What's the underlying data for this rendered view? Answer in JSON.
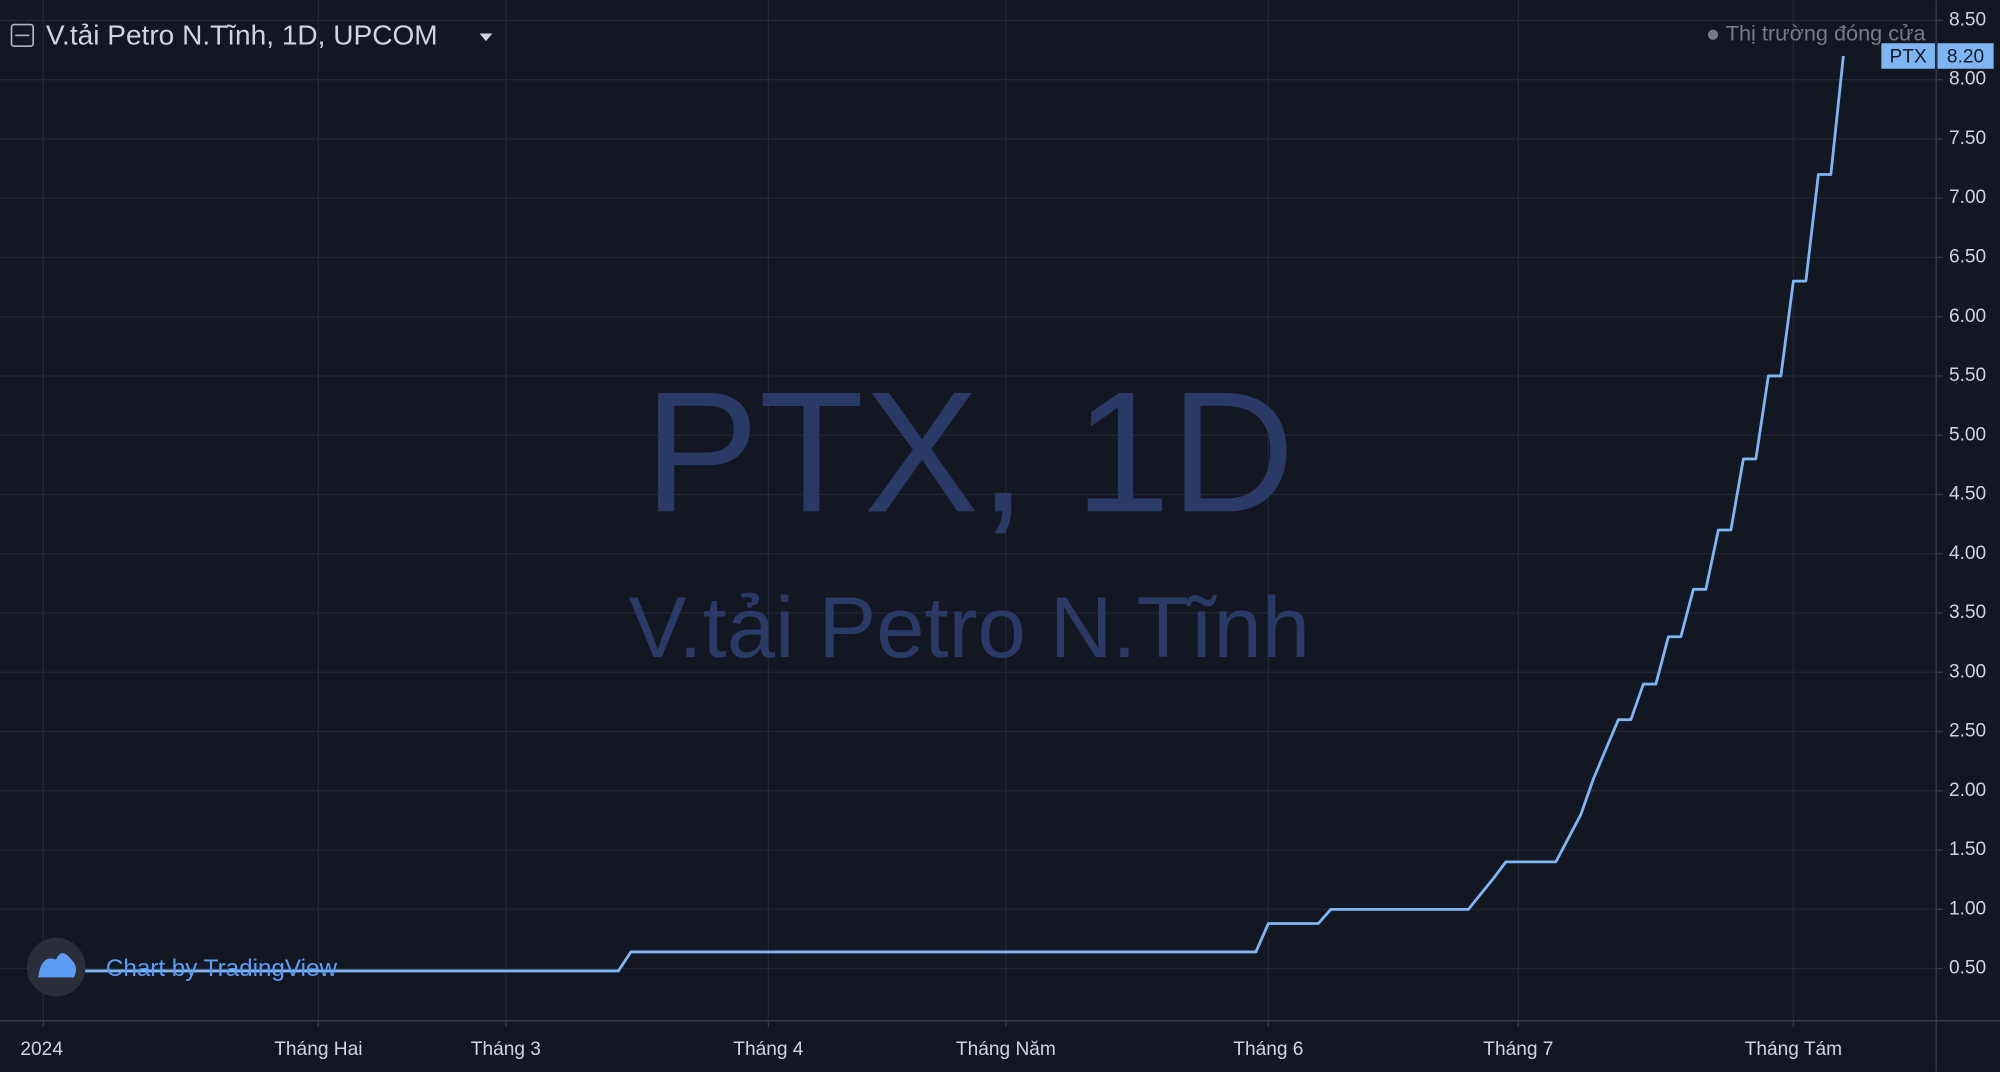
{
  "chart_data": {
    "type": "line",
    "title": "V.tải Petro N.Tĩnh, 1D, UPCOM",
    "market_status": "Thị trường đóng cửa",
    "watermark_symbol": "PTX, 1D",
    "watermark_name": "V.tải Petro N.Tĩnh",
    "branding": "Chart by TradingView",
    "last_value_label": "8.20",
    "grid": true,
    "categories": [
      "2024",
      null,
      null,
      null,
      null,
      null,
      null,
      null,
      null,
      null,
      null,
      null,
      null,
      null,
      null,
      null,
      null,
      null,
      null,
      null,
      null,
      null,
      "Tháng Hai",
      null,
      null,
      null,
      null,
      null,
      null,
      null,
      null,
      null,
      null,
      null,
      null,
      null,
      null,
      "Tháng 3",
      null,
      null,
      null,
      null,
      null,
      null,
      null,
      null,
      null,
      null,
      null,
      null,
      null,
      null,
      null,
      null,
      null,
      null,
      null,
      null,
      "Tháng 4",
      null,
      null,
      null,
      null,
      null,
      null,
      null,
      null,
      null,
      null,
      null,
      null,
      null,
      null,
      null,
      null,
      null,
      null,
      "Tháng Năm",
      null,
      null,
      null,
      null,
      null,
      null,
      null,
      null,
      null,
      null,
      null,
      null,
      null,
      null,
      null,
      null,
      null,
      null,
      null,
      null,
      "Tháng 6",
      null,
      null,
      null,
      null,
      null,
      null,
      null,
      null,
      null,
      null,
      null,
      null,
      null,
      null,
      null,
      null,
      null,
      null,
      null,
      "Tháng 7",
      null,
      null,
      null,
      null,
      null,
      null,
      null,
      null,
      null,
      null,
      null,
      null,
      null,
      null,
      null,
      null,
      null,
      null,
      null,
      null,
      null,
      "Tháng Tám",
      null,
      null,
      null,
      null
    ],
    "series": [
      {
        "name": "PTX",
        "color": "#7eb6f5",
        "values": [
          0.48,
          0.48,
          0.48,
          0.48,
          0.48,
          0.48,
          0.48,
          0.48,
          0.48,
          0.48,
          0.48,
          0.48,
          0.48,
          0.48,
          0.48,
          0.48,
          0.48,
          0.48,
          0.48,
          0.48,
          0.48,
          0.48,
          0.48,
          0.48,
          0.48,
          0.48,
          0.48,
          0.48,
          0.48,
          0.48,
          0.48,
          0.48,
          0.48,
          0.48,
          0.48,
          0.48,
          0.48,
          0.48,
          0.48,
          0.48,
          0.48,
          0.48,
          0.48,
          0.48,
          0.48,
          0.48,
          0.48,
          0.64,
          0.64,
          0.64,
          0.64,
          0.64,
          0.64,
          0.64,
          0.64,
          0.64,
          0.64,
          0.64,
          0.64,
          0.64,
          0.64,
          0.64,
          0.64,
          0.64,
          0.64,
          0.64,
          0.64,
          0.64,
          0.64,
          0.64,
          0.64,
          0.64,
          0.64,
          0.64,
          0.64,
          0.64,
          0.64,
          0.64,
          0.64,
          0.64,
          0.64,
          0.64,
          0.64,
          0.64,
          0.64,
          0.64,
          0.64,
          0.64,
          0.64,
          0.64,
          0.64,
          0.64,
          0.64,
          0.64,
          0.64,
          0.64,
          0.64,
          0.64,
          0.88,
          0.88,
          0.88,
          0.88,
          0.88,
          1.0,
          1.0,
          1.0,
          1.0,
          1.0,
          1.0,
          1.0,
          1.0,
          1.0,
          1.0,
          1.0,
          1.0,
          1.13,
          1.26,
          1.4,
          1.4,
          1.4,
          1.4,
          1.4,
          1.6,
          1.8,
          2.1,
          2.35,
          2.6,
          2.6,
          2.9,
          2.9,
          3.3,
          3.3,
          3.7,
          3.7,
          4.2,
          4.2,
          4.8,
          4.8,
          5.5,
          5.5,
          6.3,
          6.3,
          7.2,
          7.2,
          8.2
        ]
      }
    ],
    "ylim": [
      0.06,
      8.67
    ],
    "yticks": [
      {
        "value": 0.5,
        "label": "0.50"
      },
      {
        "value": 1,
        "label": "1.00"
      },
      {
        "value": 1.5,
        "label": "1.50"
      },
      {
        "value": 2,
        "label": "2.00"
      },
      {
        "value": 2.5,
        "label": "2.50"
      },
      {
        "value": 3,
        "label": "3.00"
      },
      {
        "value": 3.5,
        "label": "3.50"
      },
      {
        "value": 4,
        "label": "4.00"
      },
      {
        "value": 4.5,
        "label": "4.50"
      },
      {
        "value": 5,
        "label": "5.00"
      },
      {
        "value": 5.5,
        "label": "5.50"
      },
      {
        "value": 6,
        "label": "6.00"
      },
      {
        "value": 6.5,
        "label": "6.50"
      },
      {
        "value": 7,
        "label": "7.00"
      },
      {
        "value": 7.5,
        "label": "7.50"
      },
      {
        "value": 8,
        "label": "8.00"
      },
      {
        "value": 8.5,
        "label": "8.50"
      }
    ]
  }
}
